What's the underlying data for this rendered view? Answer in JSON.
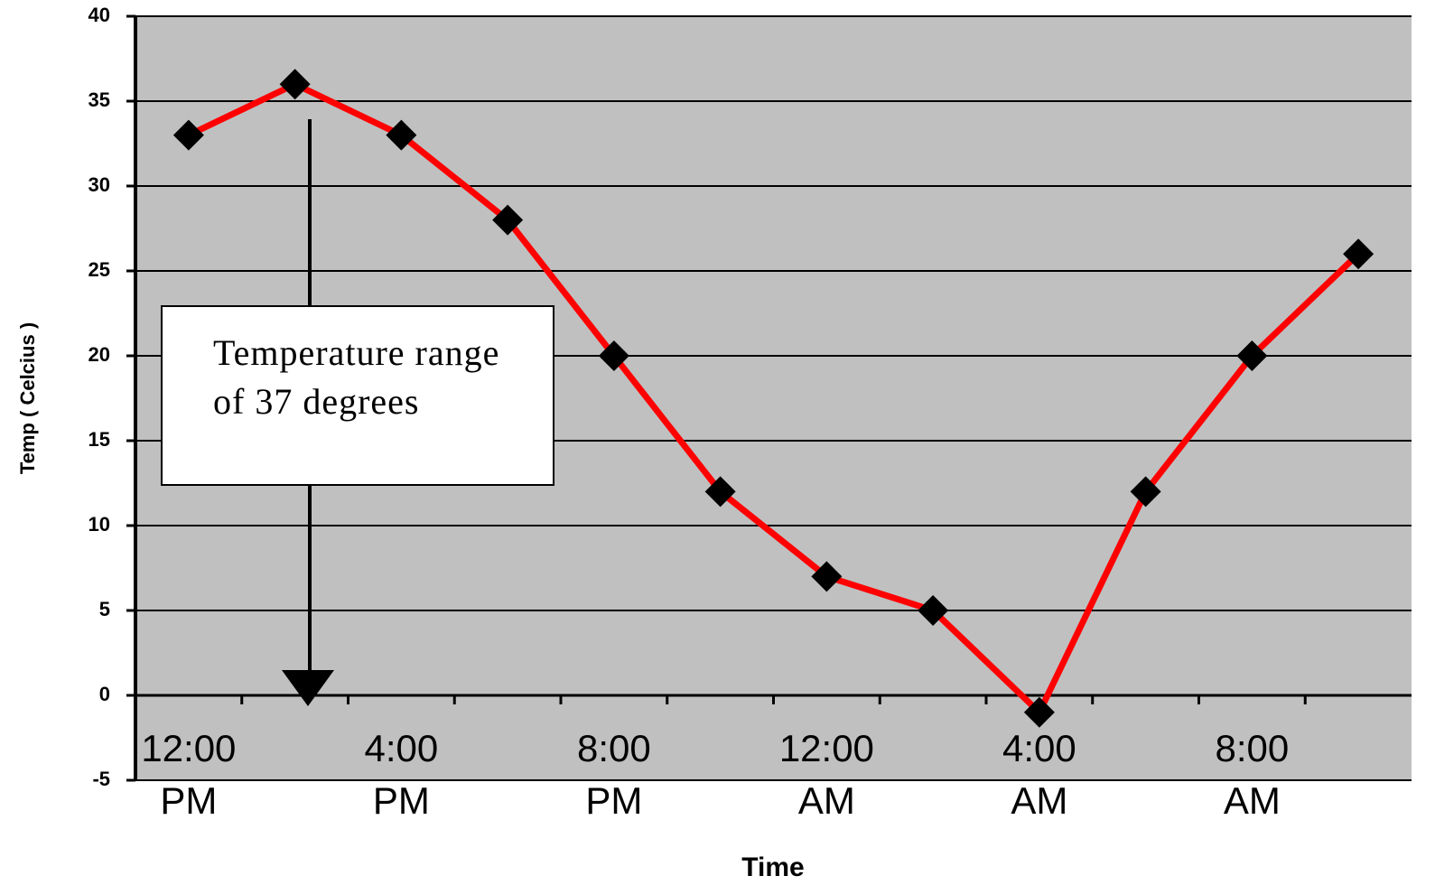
{
  "chart_data": {
    "type": "line",
    "y_label": "Temp ( Celcius )",
    "x_label": "Time",
    "annotation": "Temperature range of 37 degrees",
    "categories": [
      "12:00 PM",
      null,
      "4:00 PM",
      null,
      "8:00 PM",
      null,
      "12:00 AM",
      null,
      "4:00 AM",
      null,
      "8:00 AM",
      null
    ],
    "series": [
      {
        "name": "Temperature",
        "color": "#ff0000",
        "values": [
          33,
          36,
          33,
          28,
          20,
          12,
          7,
          5,
          -1,
          12,
          20,
          26
        ]
      }
    ],
    "ylim": [
      -5,
      40
    ],
    "yticks": [
      -5,
      0,
      5,
      10,
      15,
      20,
      25,
      30,
      35,
      40
    ],
    "grid": true
  }
}
